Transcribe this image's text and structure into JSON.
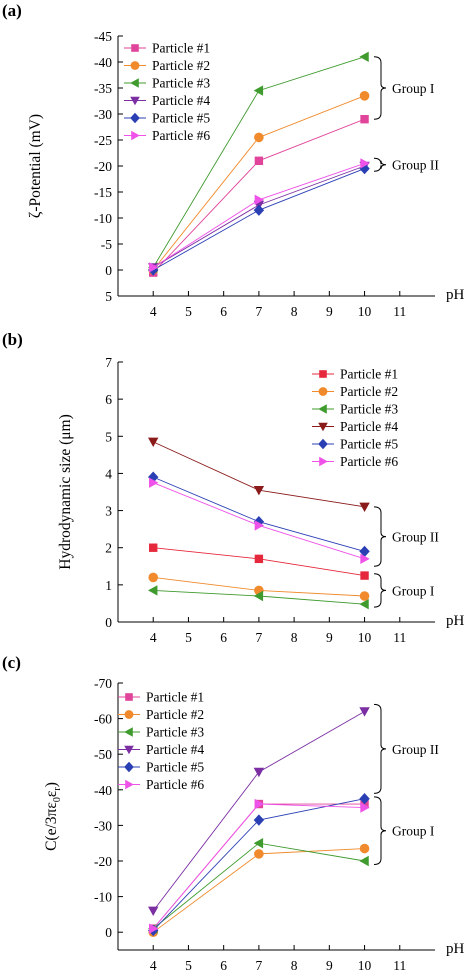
{
  "chart_data": [
    {
      "panel_label": "(a)",
      "type": "line",
      "ylabel": "ζ-Potential (mV)",
      "xlabel": "pH",
      "xlim": [
        3,
        12
      ],
      "ylim": [
        5,
        -45
      ],
      "y_inverted": true,
      "xticks": [
        "4",
        "5",
        "6",
        "7",
        "8",
        "9",
        "10",
        "11"
      ],
      "yticks": [
        "-45",
        "-40",
        "-35",
        "-30",
        "-25",
        "-20",
        "-15",
        "-10",
        "-5",
        "0",
        "5"
      ],
      "x": [
        4,
        7,
        10
      ],
      "legend_position": "top-left",
      "series": [
        {
          "name": "Particle #1",
          "values": [
            0.5,
            -21,
            -29
          ],
          "color": "#e0449b",
          "marker": "square"
        },
        {
          "name": "Particle #2",
          "values": [
            0,
            -25.5,
            -33.5
          ],
          "color": "#f08a2c",
          "marker": "circle"
        },
        {
          "name": "Particle #3",
          "values": [
            -0.5,
            -34.5,
            -41
          ],
          "color": "#3f9b2e",
          "marker": "triangle-left"
        },
        {
          "name": "Particle #4",
          "values": [
            -0.5,
            -12.5,
            -20
          ],
          "color": "#7b2fa3",
          "marker": "triangle-down"
        },
        {
          "name": "Particle #5",
          "values": [
            0,
            -11.5,
            -19.5
          ],
          "color": "#2b3fb5",
          "marker": "diamond"
        },
        {
          "name": "Particle #6",
          "values": [
            -0.5,
            -13.5,
            -20.5
          ],
          "color": "#ee52e8",
          "marker": "triangle-right"
        }
      ],
      "annotations": [
        {
          "text": "Group I",
          "range": [
            -29,
            -41
          ]
        },
        {
          "text": "Group II",
          "range": [
            -19,
            -21.5
          ]
        }
      ]
    },
    {
      "panel_label": "(b)",
      "type": "line",
      "ylabel": "Hydrodynamic size (μm)",
      "xlabel": "pH",
      "xlim": [
        3,
        12
      ],
      "ylim": [
        0,
        7
      ],
      "xticks": [
        "4",
        "5",
        "6",
        "7",
        "8",
        "9",
        "10",
        "11"
      ],
      "yticks": [
        "0",
        "1",
        "2",
        "3",
        "4",
        "5",
        "6",
        "7"
      ],
      "x": [
        4,
        7,
        10
      ],
      "legend_position": "top-right",
      "series": [
        {
          "name": "Particle #1",
          "values": [
            2.0,
            1.7,
            1.25
          ],
          "color": "#e6283c",
          "marker": "square"
        },
        {
          "name": "Particle #2",
          "values": [
            1.2,
            0.85,
            0.7
          ],
          "color": "#f08a2c",
          "marker": "circle"
        },
        {
          "name": "Particle #3",
          "values": [
            0.85,
            0.7,
            0.48
          ],
          "color": "#3f9b2e",
          "marker": "triangle-left"
        },
        {
          "name": "Particle #4",
          "values": [
            4.85,
            3.55,
            3.1
          ],
          "color": "#8b1a1a",
          "marker": "triangle-down"
        },
        {
          "name": "Particle #5",
          "values": [
            3.9,
            2.7,
            1.9
          ],
          "color": "#2b3fb5",
          "marker": "diamond"
        },
        {
          "name": "Particle #6",
          "values": [
            3.75,
            2.6,
            1.7
          ],
          "color": "#ee52e8",
          "marker": "triangle-right"
        }
      ],
      "annotations": [
        {
          "text": "Group II",
          "range": [
            1.5,
            3.1
          ]
        },
        {
          "text": "Group I",
          "range": [
            0.4,
            1.3
          ]
        }
      ]
    },
    {
      "panel_label": "(c)",
      "type": "line",
      "ylabel": "C(e/3πε0εr)",
      "ylabel_parts": {
        "main": "C(e/3πε",
        "sub1": "0",
        "mid": "ε",
        "sub2": "r",
        "end": ")"
      },
      "xlabel": "pH",
      "xlim": [
        3,
        12
      ],
      "ylim": [
        5,
        -70
      ],
      "y_inverted": true,
      "xticks": [
        "4",
        "5",
        "6",
        "7",
        "8",
        "9",
        "10",
        "11"
      ],
      "yticks": [
        "-70",
        "-60",
        "-50",
        "-40",
        "-30",
        "-20",
        "-10",
        "0"
      ],
      "x": [
        4,
        7,
        10
      ],
      "legend_position": "top-left",
      "series": [
        {
          "name": "Particle #1",
          "values": [
            -1,
            -36,
            -36
          ],
          "color": "#e0449b",
          "marker": "square"
        },
        {
          "name": "Particle #2",
          "values": [
            0,
            -22,
            -23.5
          ],
          "color": "#f08a2c",
          "marker": "circle"
        },
        {
          "name": "Particle #3",
          "values": [
            -1,
            -25,
            -20
          ],
          "color": "#3f9b2e",
          "marker": "triangle-left"
        },
        {
          "name": "Particle #4",
          "values": [
            -6,
            -45,
            -62
          ],
          "color": "#7b2fa3",
          "marker": "triangle-down"
        },
        {
          "name": "Particle #5",
          "values": [
            -0.5,
            -31.5,
            -37.5
          ],
          "color": "#2b3fb5",
          "marker": "diamond"
        },
        {
          "name": "Particle #6",
          "values": [
            -1,
            -36,
            -35
          ],
          "color": "#ee52e8",
          "marker": "triangle-right"
        }
      ],
      "annotations": [
        {
          "text": "Group II",
          "range": [
            -39,
            -64
          ]
        },
        {
          "text": "Group I",
          "range": [
            -19,
            -38
          ]
        }
      ]
    }
  ]
}
